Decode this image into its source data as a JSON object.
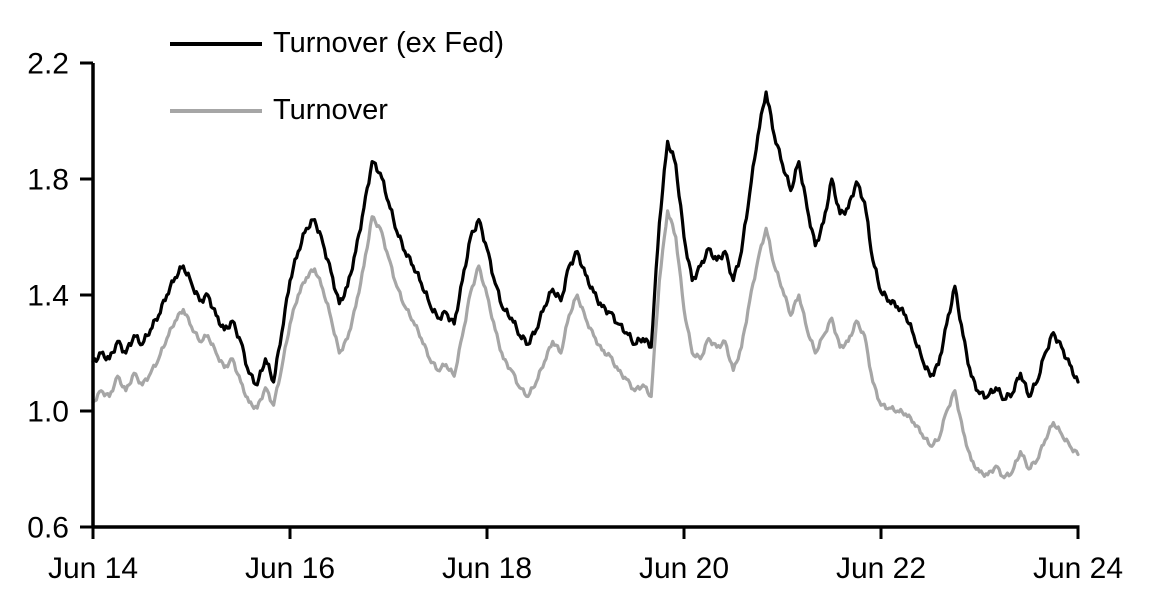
{
  "chart": {
    "legend": [
      {
        "label": "Turnover (ex Fed)",
        "color": "#000000"
      },
      {
        "label": "Turnover",
        "color": "#a6a6a6"
      }
    ]
  },
  "chart_data": {
    "type": "line",
    "title": "",
    "xlabel": "",
    "ylabel": "",
    "grid": false,
    "legend_position": "top-left",
    "background": "#ffffff",
    "axis_color": "#000000",
    "ylim": [
      0.6,
      2.2
    ],
    "y_ticks": [
      0.6,
      1.0,
      1.4,
      1.8,
      2.2
    ],
    "x_tick_labels": [
      "Jun 14",
      "Jun 16",
      "Jun 18",
      "Jun 20",
      "Jun 22",
      "Jun 24"
    ],
    "x_start": "Jun 2014",
    "x_end": "Jun 2024",
    "x_sampling": "monthly",
    "series": [
      {
        "name": "Turnover (ex Fed)",
        "color": "#000000",
        "values": [
          1.17,
          1.2,
          1.18,
          1.24,
          1.2,
          1.26,
          1.23,
          1.28,
          1.33,
          1.4,
          1.46,
          1.5,
          1.44,
          1.38,
          1.4,
          1.33,
          1.28,
          1.31,
          1.24,
          1.13,
          1.09,
          1.18,
          1.1,
          1.27,
          1.45,
          1.55,
          1.63,
          1.66,
          1.58,
          1.48,
          1.37,
          1.43,
          1.55,
          1.7,
          1.86,
          1.82,
          1.72,
          1.62,
          1.55,
          1.5,
          1.44,
          1.37,
          1.32,
          1.34,
          1.3,
          1.45,
          1.6,
          1.66,
          1.56,
          1.44,
          1.35,
          1.32,
          1.26,
          1.23,
          1.28,
          1.36,
          1.42,
          1.38,
          1.5,
          1.55,
          1.47,
          1.41,
          1.36,
          1.34,
          1.3,
          1.27,
          1.23,
          1.25,
          1.22,
          1.65,
          1.93,
          1.85,
          1.6,
          1.45,
          1.5,
          1.56,
          1.52,
          1.55,
          1.45,
          1.55,
          1.75,
          1.95,
          2.1,
          1.95,
          1.85,
          1.76,
          1.86,
          1.7,
          1.57,
          1.65,
          1.8,
          1.68,
          1.7,
          1.79,
          1.72,
          1.52,
          1.41,
          1.38,
          1.36,
          1.33,
          1.26,
          1.18,
          1.12,
          1.16,
          1.3,
          1.43,
          1.26,
          1.12,
          1.06,
          1.05,
          1.08,
          1.04,
          1.06,
          1.13,
          1.05,
          1.1,
          1.2,
          1.27,
          1.22,
          1.16,
          1.1
        ]
      },
      {
        "name": "Turnover",
        "color": "#a6a6a6",
        "values": [
          1.03,
          1.07,
          1.05,
          1.12,
          1.07,
          1.13,
          1.09,
          1.13,
          1.18,
          1.25,
          1.31,
          1.35,
          1.29,
          1.24,
          1.26,
          1.2,
          1.15,
          1.18,
          1.1,
          1.03,
          1.01,
          1.08,
          1.02,
          1.15,
          1.3,
          1.4,
          1.46,
          1.49,
          1.42,
          1.32,
          1.2,
          1.25,
          1.36,
          1.5,
          1.67,
          1.63,
          1.53,
          1.43,
          1.36,
          1.31,
          1.25,
          1.18,
          1.14,
          1.16,
          1.12,
          1.26,
          1.41,
          1.5,
          1.4,
          1.28,
          1.18,
          1.14,
          1.08,
          1.05,
          1.1,
          1.17,
          1.24,
          1.2,
          1.33,
          1.4,
          1.32,
          1.26,
          1.21,
          1.19,
          1.14,
          1.11,
          1.07,
          1.09,
          1.05,
          1.45,
          1.69,
          1.6,
          1.35,
          1.2,
          1.18,
          1.25,
          1.22,
          1.24,
          1.14,
          1.22,
          1.38,
          1.52,
          1.63,
          1.5,
          1.42,
          1.33,
          1.4,
          1.28,
          1.2,
          1.26,
          1.32,
          1.22,
          1.24,
          1.31,
          1.26,
          1.1,
          1.02,
          1.01,
          1.0,
          0.99,
          0.96,
          0.92,
          0.88,
          0.9,
          1.0,
          1.07,
          0.93,
          0.83,
          0.79,
          0.78,
          0.81,
          0.77,
          0.79,
          0.86,
          0.8,
          0.83,
          0.9,
          0.96,
          0.92,
          0.88,
          0.85
        ]
      }
    ]
  }
}
